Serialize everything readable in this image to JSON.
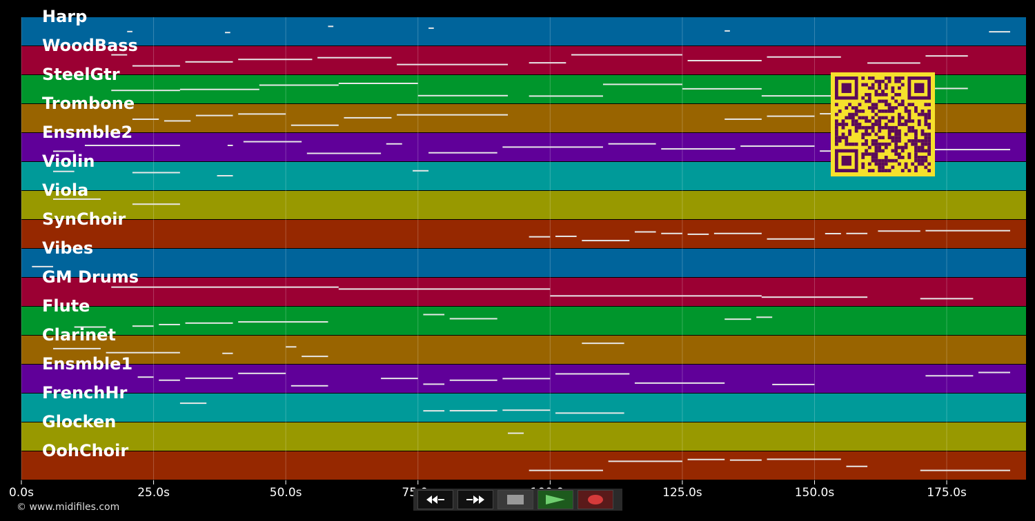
{
  "tracks": [
    {
      "name": "Harp",
      "color": "#00649b"
    },
    {
      "name": "WoodBass",
      "color": "#9b0033"
    },
    {
      "name": "SteelGtr",
      "color": "#00962c"
    },
    {
      "name": "Trombone",
      "color": "#996400"
    },
    {
      "name": "Ensmble2",
      "color": "#600099"
    },
    {
      "name": "Violin",
      "color": "#009a99"
    },
    {
      "name": "Viola",
      "color": "#989900"
    },
    {
      "name": "SynChoir",
      "color": "#962800"
    },
    {
      "name": "Vibes",
      "color": "#00649b"
    },
    {
      "name": "GM Drums",
      "color": "#9b0033"
    },
    {
      "name": "Flute",
      "color": "#00962c"
    },
    {
      "name": "Clarinet",
      "color": "#996400"
    },
    {
      "name": "Ensmble1",
      "color": "#600099"
    },
    {
      "name": "FrenchHr",
      "color": "#009a99"
    },
    {
      "name": "Glocken",
      "color": "#989900"
    },
    {
      "name": "OohChoir",
      "color": "#962800"
    }
  ],
  "time_axis": {
    "max_seconds": 190,
    "ticks": [
      {
        "value": 0,
        "label": "0.0s"
      },
      {
        "value": 25,
        "label": "25.0s"
      },
      {
        "value": 50,
        "label": "50.0s"
      },
      {
        "value": 75,
        "label": "75.0s"
      },
      {
        "value": 100,
        "label": "100.0s"
      },
      {
        "value": 125,
        "label": "125.0s"
      },
      {
        "value": 150,
        "label": "150.0s"
      },
      {
        "value": 175,
        "label": "175.0s"
      }
    ]
  },
  "note_color": "#e8e8e8",
  "grid_color": "#ffffff",
  "notes": [
    {
      "track": 0,
      "segments": [
        [
          20,
          21
        ],
        [
          38.5,
          39.5
        ],
        [
          58,
          59
        ],
        [
          77,
          78
        ],
        [
          133,
          134
        ],
        [
          183,
          187
        ]
      ]
    },
    {
      "track": 1,
      "segments": [
        [
          17,
          20
        ],
        [
          21,
          30
        ],
        [
          31,
          40
        ],
        [
          41,
          55
        ],
        [
          56,
          70
        ],
        [
          71,
          92
        ],
        [
          96,
          103
        ],
        [
          104,
          125
        ],
        [
          126,
          140
        ],
        [
          141,
          155
        ],
        [
          160,
          170
        ],
        [
          171,
          179
        ]
      ]
    },
    {
      "track": 2,
      "segments": [
        [
          17,
          30
        ],
        [
          30,
          45
        ],
        [
          45,
          60
        ],
        [
          60,
          75
        ],
        [
          75,
          92
        ],
        [
          96,
          110
        ],
        [
          110,
          125
        ],
        [
          125,
          140
        ],
        [
          140,
          155
        ],
        [
          155,
          170
        ],
        [
          170,
          179
        ]
      ]
    },
    {
      "track": 3,
      "segments": [
        [
          21,
          26
        ],
        [
          27,
          32
        ],
        [
          33,
          40
        ],
        [
          41,
          50
        ],
        [
          51,
          60
        ],
        [
          61,
          70
        ],
        [
          71,
          92
        ],
        [
          133,
          140
        ],
        [
          141,
          150
        ],
        [
          151,
          155
        ]
      ]
    },
    {
      "track": 4,
      "segments": [
        [
          6,
          10
        ],
        [
          12,
          30
        ],
        [
          39,
          40
        ],
        [
          42,
          53
        ],
        [
          54,
          68
        ],
        [
          69,
          72
        ],
        [
          77,
          90
        ],
        [
          91,
          110
        ],
        [
          111,
          120
        ],
        [
          121,
          135
        ],
        [
          136,
          150
        ],
        [
          151,
          170
        ],
        [
          171,
          187
        ]
      ]
    },
    {
      "track": 5,
      "segments": [
        [
          6,
          10
        ],
        [
          21,
          30
        ],
        [
          37,
          40
        ],
        [
          74,
          77
        ]
      ]
    },
    {
      "track": 6,
      "segments": [
        [
          6,
          15
        ],
        [
          21,
          30
        ]
      ]
    },
    {
      "track": 7,
      "segments": [
        [
          96,
          100
        ],
        [
          101,
          105
        ],
        [
          106,
          115
        ],
        [
          116,
          120
        ],
        [
          121,
          125
        ],
        [
          126,
          130
        ],
        [
          131,
          140
        ],
        [
          141,
          150
        ],
        [
          152,
          155
        ],
        [
          156,
          160
        ],
        [
          162,
          170
        ],
        [
          171,
          187
        ]
      ]
    },
    {
      "track": 8,
      "segments": [
        [
          2,
          6
        ]
      ]
    },
    {
      "track": 9,
      "segments": [
        [
          17,
          60
        ],
        [
          60,
          100
        ],
        [
          100,
          140
        ],
        [
          140,
          160
        ],
        [
          170,
          180
        ]
      ]
    },
    {
      "track": 10,
      "segments": [
        [
          10,
          16
        ],
        [
          21,
          25
        ],
        [
          26,
          30
        ],
        [
          31,
          40
        ],
        [
          41,
          58
        ],
        [
          76,
          80
        ],
        [
          81,
          90
        ],
        [
          133,
          138
        ],
        [
          139,
          142
        ]
      ]
    },
    {
      "track": 11,
      "segments": [
        [
          6,
          15
        ],
        [
          16,
          30
        ],
        [
          38,
          40
        ],
        [
          50,
          52
        ],
        [
          53,
          58
        ],
        [
          106,
          114
        ]
      ]
    },
    {
      "track": 12,
      "segments": [
        [
          22,
          25
        ],
        [
          26,
          30
        ],
        [
          31,
          40
        ],
        [
          41,
          50
        ],
        [
          51,
          58
        ],
        [
          68,
          75
        ],
        [
          76,
          80
        ],
        [
          81,
          90
        ],
        [
          91,
          100
        ],
        [
          101,
          115
        ],
        [
          116,
          133
        ],
        [
          142,
          150
        ],
        [
          171,
          180
        ],
        [
          181,
          187
        ]
      ]
    },
    {
      "track": 13,
      "segments": [
        [
          30,
          35
        ],
        [
          76,
          80
        ],
        [
          81,
          90
        ],
        [
          91,
          100
        ],
        [
          101,
          114
        ]
      ]
    },
    {
      "track": 14,
      "segments": [
        [
          92,
          95
        ]
      ]
    },
    {
      "track": 15,
      "segments": [
        [
          96,
          110
        ],
        [
          111,
          125
        ],
        [
          126,
          133
        ],
        [
          134,
          140
        ],
        [
          141,
          155
        ],
        [
          156,
          160
        ],
        [
          170,
          187
        ]
      ]
    }
  ],
  "credit": "© www.midifiles.com",
  "transport": {
    "rewind_icon": "rewind-icon",
    "forward_icon": "fast-forward-icon",
    "stop_icon": "stop-icon",
    "play_icon": "play-icon",
    "record_icon": "record-icon"
  },
  "qr_code": {
    "fg": "#5a0a5a",
    "bg": "#f6e12c"
  }
}
